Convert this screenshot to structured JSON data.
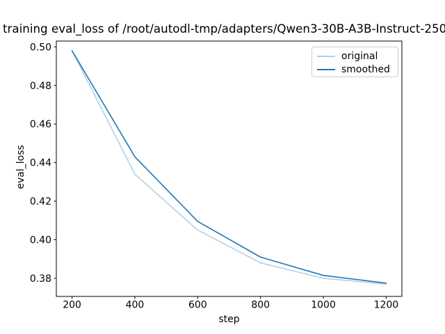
{
  "chart_data": {
    "type": "line",
    "title": "training eval_loss of /root/autodl-tmp/adapters/Qwen3-30B-A3B-Instruct-250",
    "xlabel": "step",
    "ylabel": "eval_loss",
    "x": [
      200,
      400,
      600,
      800,
      1000,
      1200
    ],
    "series": [
      {
        "name": "original",
        "color": "#b0d0e8",
        "values": [
          0.498,
          0.434,
          0.405,
          0.388,
          0.38,
          0.377
        ]
      },
      {
        "name": "smoothed",
        "color": "#1f77b4",
        "values": [
          0.498,
          0.443,
          0.4095,
          0.391,
          0.3815,
          0.3775
        ]
      }
    ],
    "xticks": [
      "200",
      "400",
      "600",
      "800",
      "1000",
      "1200"
    ],
    "yticks": [
      "0.38",
      "0.40",
      "0.42",
      "0.44",
      "0.46",
      "0.48",
      "0.50"
    ],
    "xlim": [
      150,
      1250
    ],
    "ylim": [
      0.3706,
      0.503
    ],
    "grid": false,
    "legend": {
      "position": "upper right",
      "entries": [
        "original",
        "smoothed"
      ]
    }
  }
}
